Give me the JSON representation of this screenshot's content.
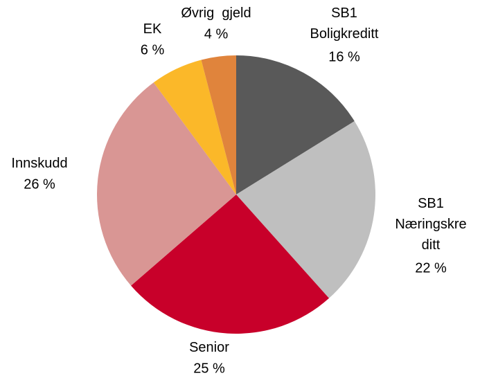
{
  "chart_data": {
    "type": "pie",
    "categories": [
      "SB1\nBoligkreditt",
      "SB1\nNæringskre\nditt",
      "Senior",
      "Innskudd",
      "EK",
      "Øvrig  gjeld"
    ],
    "values": [
      16,
      22,
      25,
      26,
      6,
      4
    ],
    "value_labels": [
      "16 %",
      "22 %",
      "25 %",
      "26 %",
      "6 %",
      "4 %"
    ],
    "colors": [
      "#595959",
      "#bfbfbf",
      "#c8002a",
      "#d99694",
      "#fbb829",
      "#e0843c"
    ]
  }
}
